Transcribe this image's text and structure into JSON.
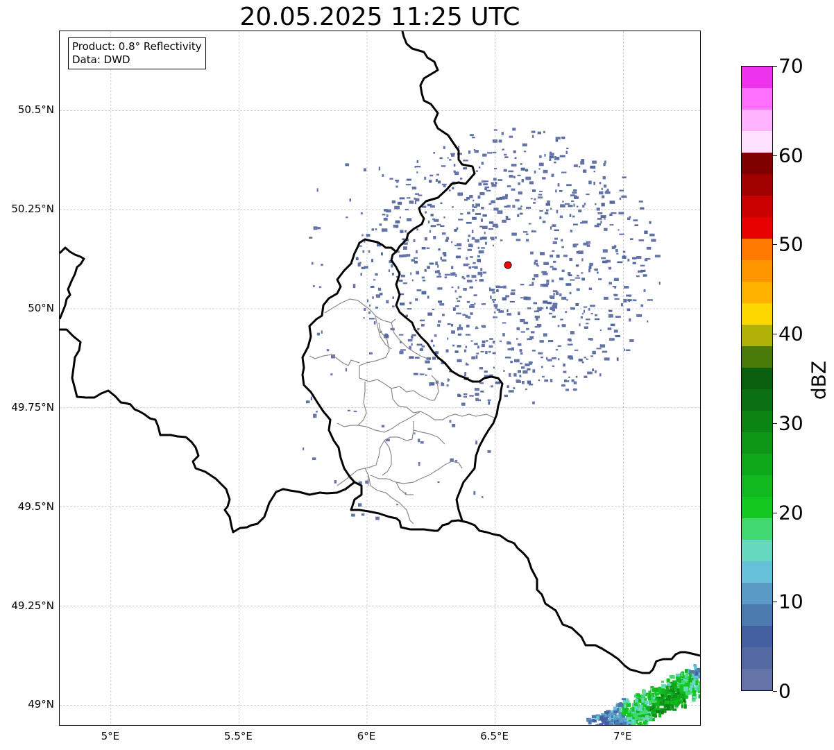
{
  "title": "20.05.2025 11:25 UTC",
  "info": {
    "product": "Product: 0.8° Reflectivity",
    "data": "Data: DWD"
  },
  "map": {
    "lon_range": [
      4.8,
      7.3
    ],
    "lat_range": [
      48.95,
      50.7
    ],
    "lon_ticks": [
      {
        "value": 5.0,
        "label": "5°E"
      },
      {
        "value": 5.5,
        "label": "5.5°E"
      },
      {
        "value": 6.0,
        "label": "6°E"
      },
      {
        "value": 6.5,
        "label": "6.5°E"
      },
      {
        "value": 7.0,
        "label": "7°E"
      }
    ],
    "lat_ticks": [
      {
        "value": 50.5,
        "label": "50.5°N"
      },
      {
        "value": 50.25,
        "label": "50.25°N"
      },
      {
        "value": 50.0,
        "label": "50°N"
      },
      {
        "value": 49.75,
        "label": "49.75°N"
      },
      {
        "value": 49.5,
        "label": "49.5°N"
      },
      {
        "value": 49.25,
        "label": "49.25°N"
      },
      {
        "value": 49.0,
        "label": "49°N"
      }
    ],
    "gridlines": true,
    "radar_site": {
      "lon": 6.55,
      "lat": 50.11,
      "color": "#ff0000"
    }
  },
  "colorbar": {
    "label": "dBZ",
    "range": [
      0,
      70
    ],
    "step": 2.5,
    "ticks": [
      "0",
      "10",
      "20",
      "30",
      "40",
      "50",
      "60",
      "70"
    ],
    "colors": [
      "#6574a8",
      "#5469a0",
      "#445fa2",
      "#4d7bb0",
      "#5a9ac4",
      "#66c0d8",
      "#66d8c0",
      "#40d870",
      "#12c820",
      "#11b81e",
      "#10a81b",
      "#0e9618",
      "#0c8415",
      "#0a7012",
      "#0a5e0e",
      "#4a7a0a",
      "#b0b208",
      "#ffd700",
      "#ffb300",
      "#ff9600",
      "#ff7800",
      "#e60000",
      "#c80000",
      "#a00000",
      "#800000",
      "#ffe0ff",
      "#ffb3ff",
      "#ff70ff",
      "#ee33ee"
    ]
  }
}
